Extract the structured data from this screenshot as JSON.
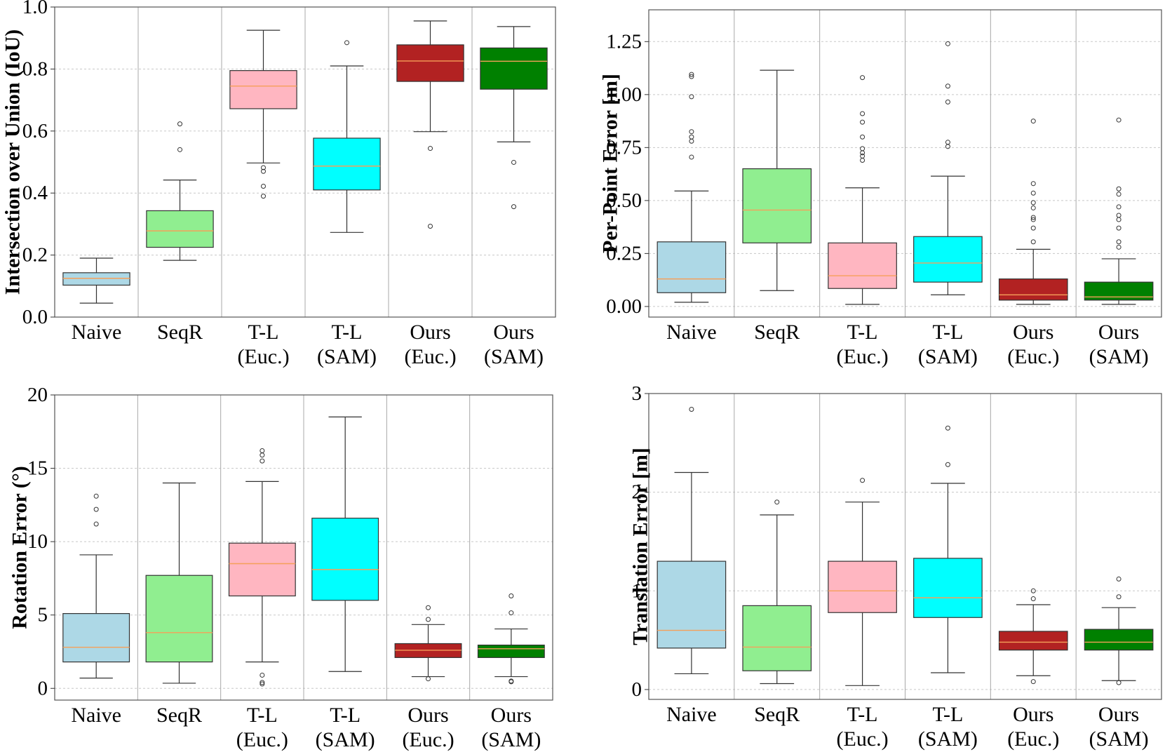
{
  "colors": {
    "naive": "#add8e6",
    "seqr": "#90ee90",
    "tl_euc": "#ffb6c1",
    "tl_sam": "#00ffff",
    "ours_euc": "#b22222",
    "ours_sam": "#008000",
    "median": "#f5a05a"
  },
  "chart_data": [
    {
      "type": "box",
      "id": "iou",
      "ylabel": "Intersection over Union (IoU)",
      "ylim": [
        0.0,
        1.0
      ],
      "yticks": [
        0.0,
        0.2,
        0.4,
        0.6,
        0.8,
        1.0
      ],
      "ytick_labels": [
        "0.0",
        "0.2",
        "0.4",
        "0.6",
        "0.8",
        "1.0"
      ],
      "grid": true,
      "categories": [
        [
          "Naive"
        ],
        [
          "SeqR"
        ],
        [
          "T-L",
          "(Euc.)"
        ],
        [
          "T-L",
          "(SAM)"
        ],
        [
          "Ours",
          "(Euc.)"
        ],
        [
          "Ours",
          "(SAM)"
        ]
      ],
      "boxes": [
        {
          "color": "naive",
          "whislo": 0.045,
          "q1": 0.103,
          "med": 0.125,
          "q3": 0.143,
          "whishi": 0.19,
          "fliers": []
        },
        {
          "color": "seqr",
          "whislo": 0.183,
          "q1": 0.225,
          "med": 0.278,
          "q3": 0.343,
          "whishi": 0.442,
          "fliers": [
            0.54,
            0.623
          ]
        },
        {
          "color": "tl_euc",
          "whislo": 0.497,
          "q1": 0.672,
          "med": 0.745,
          "q3": 0.795,
          "whishi": 0.925,
          "fliers": [
            0.39,
            0.422,
            0.47,
            0.482
          ]
        },
        {
          "color": "tl_sam",
          "whislo": 0.273,
          "q1": 0.41,
          "med": 0.487,
          "q3": 0.577,
          "whishi": 0.81,
          "fliers": [
            0.885
          ]
        },
        {
          "color": "ours_euc",
          "whislo": 0.598,
          "q1": 0.76,
          "med": 0.826,
          "q3": 0.878,
          "whishi": 0.955,
          "fliers": [
            0.293,
            0.544
          ]
        },
        {
          "color": "ours_sam",
          "whislo": 0.565,
          "q1": 0.735,
          "med": 0.825,
          "q3": 0.868,
          "whishi": 0.937,
          "fliers": [
            0.356,
            0.499
          ]
        }
      ]
    },
    {
      "type": "box",
      "id": "per_point",
      "ylabel": "Per-Point Error [m]",
      "ylim": [
        -0.05,
        1.4
      ],
      "yticks": [
        0.0,
        0.25,
        0.5,
        0.75,
        1.0,
        1.25
      ],
      "ytick_labels": [
        "0.00",
        "0.25",
        "0.50",
        "0.75",
        "1.00",
        "1.25"
      ],
      "grid": true,
      "categories": [
        [
          "Naive"
        ],
        [
          "SeqR"
        ],
        [
          "T-L",
          "(Euc.)"
        ],
        [
          "T-L",
          "(SAM)"
        ],
        [
          "Ours",
          "(Euc.)"
        ],
        [
          "Ours",
          "(SAM)"
        ]
      ],
      "boxes": [
        {
          "color": "naive",
          "whislo": 0.02,
          "q1": 0.065,
          "med": 0.13,
          "q3": 0.305,
          "whishi": 0.545,
          "fliers": [
            0.705,
            0.78,
            0.8,
            0.825,
            0.99,
            1.085,
            1.095
          ]
        },
        {
          "color": "seqr",
          "whislo": 0.075,
          "q1": 0.3,
          "med": 0.455,
          "q3": 0.65,
          "whishi": 1.115,
          "fliers": []
        },
        {
          "color": "tl_euc",
          "whislo": 0.01,
          "q1": 0.085,
          "med": 0.145,
          "q3": 0.3,
          "whishi": 0.56,
          "fliers": [
            0.69,
            0.71,
            0.725,
            0.745,
            0.8,
            0.87,
            0.91,
            1.08
          ]
        },
        {
          "color": "tl_sam",
          "whislo": 0.055,
          "q1": 0.115,
          "med": 0.205,
          "q3": 0.33,
          "whishi": 0.615,
          "fliers": [
            0.755,
            0.775,
            0.965,
            1.04,
            1.24
          ]
        },
        {
          "color": "ours_euc",
          "whislo": 0.01,
          "q1": 0.03,
          "med": 0.055,
          "q3": 0.13,
          "whishi": 0.27,
          "fliers": [
            0.305,
            0.37,
            0.41,
            0.42,
            0.465,
            0.49,
            0.535,
            0.58,
            0.875
          ]
        },
        {
          "color": "ours_sam",
          "whislo": 0.01,
          "q1": 0.03,
          "med": 0.045,
          "q3": 0.115,
          "whishi": 0.225,
          "fliers": [
            0.28,
            0.305,
            0.37,
            0.41,
            0.43,
            0.47,
            0.53,
            0.555,
            0.88
          ]
        }
      ]
    },
    {
      "type": "box",
      "id": "rotation",
      "ylabel": "Rotation Error (°)",
      "ylim": [
        -0.8,
        20.0
      ],
      "yticks": [
        0,
        5,
        10,
        15,
        20
      ],
      "ytick_labels": [
        "0",
        "5",
        "10",
        "15",
        "20"
      ],
      "grid": true,
      "categories": [
        [
          "Naive"
        ],
        [
          "SeqR"
        ],
        [
          "T-L",
          "(Euc.)"
        ],
        [
          "T-L",
          "(SAM)"
        ],
        [
          "Ours",
          "(Euc.)"
        ],
        [
          "Ours",
          "(SAM)"
        ]
      ],
      "boxes": [
        {
          "color": "naive",
          "whislo": 0.7,
          "q1": 1.8,
          "med": 2.8,
          "q3": 5.1,
          "whishi": 9.1,
          "fliers": [
            11.2,
            12.2,
            13.1
          ]
        },
        {
          "color": "seqr",
          "whislo": 0.35,
          "q1": 1.8,
          "med": 3.8,
          "q3": 7.7,
          "whishi": 14.0,
          "fliers": []
        },
        {
          "color": "tl_euc",
          "whislo": 1.8,
          "q1": 6.3,
          "med": 8.5,
          "q3": 9.9,
          "whishi": 14.1,
          "fliers": [
            0.3,
            0.4,
            0.9,
            15.5,
            15.9,
            16.2
          ]
        },
        {
          "color": "tl_sam",
          "whislo": 1.15,
          "q1": 6.0,
          "med": 8.1,
          "q3": 11.6,
          "whishi": 18.5,
          "fliers": []
        },
        {
          "color": "ours_euc",
          "whislo": 0.8,
          "q1": 2.1,
          "med": 2.6,
          "q3": 3.05,
          "whishi": 4.35,
          "fliers": [
            0.65,
            4.7,
            5.5
          ]
        },
        {
          "color": "ours_sam",
          "whislo": 0.8,
          "q1": 2.1,
          "med": 2.7,
          "q3": 2.95,
          "whishi": 4.05,
          "fliers": [
            0.45,
            0.5,
            5.15,
            6.3
          ]
        }
      ]
    },
    {
      "type": "box",
      "id": "translation",
      "ylabel": "Translation Error [m]",
      "ylim": [
        -0.1,
        3.0
      ],
      "yticks": [
        0,
        1,
        2,
        3
      ],
      "ytick_labels": [
        "0",
        "1",
        "2",
        "3"
      ],
      "grid": true,
      "categories": [
        [
          "Naive"
        ],
        [
          "SeqR"
        ],
        [
          "T-L",
          "(Euc.)"
        ],
        [
          "T-L",
          "(SAM)"
        ],
        [
          "Ours",
          "(Euc.)"
        ],
        [
          "Ours",
          "(SAM)"
        ]
      ],
      "boxes": [
        {
          "color": "naive",
          "whislo": 0.16,
          "q1": 0.42,
          "med": 0.6,
          "q3": 1.3,
          "whishi": 2.2,
          "fliers": [
            2.84
          ]
        },
        {
          "color": "seqr",
          "whislo": 0.06,
          "q1": 0.19,
          "med": 0.43,
          "q3": 0.85,
          "whishi": 1.77,
          "fliers": [
            1.9
          ]
        },
        {
          "color": "tl_euc",
          "whislo": 0.04,
          "q1": 0.78,
          "med": 1.0,
          "q3": 1.3,
          "whishi": 1.9,
          "fliers": [
            2.12
          ]
        },
        {
          "color": "tl_sam",
          "whislo": 0.17,
          "q1": 0.73,
          "med": 0.93,
          "q3": 1.33,
          "whishi": 2.09,
          "fliers": [
            2.28,
            2.65
          ]
        },
        {
          "color": "ours_euc",
          "whislo": 0.14,
          "q1": 0.4,
          "med": 0.48,
          "q3": 0.59,
          "whishi": 0.86,
          "fliers": [
            0.08,
            0.92,
            1.0
          ]
        },
        {
          "color": "ours_sam",
          "whislo": 0.09,
          "q1": 0.4,
          "med": 0.48,
          "q3": 0.61,
          "whishi": 0.83,
          "fliers": [
            0.07,
            0.94,
            1.12
          ]
        }
      ]
    }
  ]
}
